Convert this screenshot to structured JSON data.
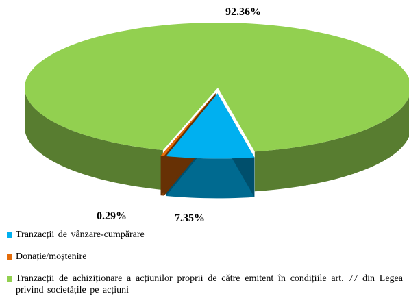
{
  "chart_data": {
    "type": "pie",
    "categories": [
      "Tranzacții de vânzare-cumpărare",
      "Donație/moștenire",
      "Tranzacții de achiziționare a acțiunilor proprii de către emitent în condițiile art. 77 din Legea privind societățile pe acțiuni"
    ],
    "values": [
      7.35,
      0.29,
      92.36
    ],
    "value_labels": [
      "7.35%",
      "0.29%",
      "92.36%"
    ],
    "colors": [
      "#00b0f0",
      "#e46c0a",
      "#92d050"
    ]
  }
}
